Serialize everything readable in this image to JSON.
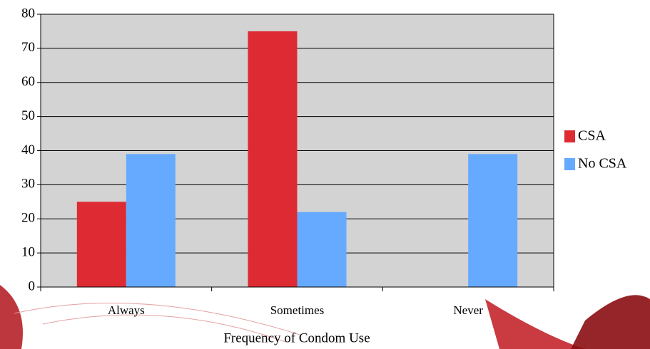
{
  "chart_data": {
    "type": "bar",
    "x_label": "Frequency of Condom Use",
    "categories": [
      "Always",
      "Sometimes",
      "Never"
    ],
    "series": [
      {
        "name": "CSA",
        "color": "#de2a32",
        "values": [
          25,
          75,
          0
        ]
      },
      {
        "name": "No CSA",
        "color": "#66aaff",
        "values": [
          39,
          22,
          39
        ]
      }
    ],
    "ylim": [
      0,
      80
    ],
    "yticks": [
      0,
      10,
      20,
      30,
      40,
      50,
      60,
      70,
      80
    ],
    "grid": true,
    "legend": "right",
    "plot_background": "#d3d3d3"
  }
}
